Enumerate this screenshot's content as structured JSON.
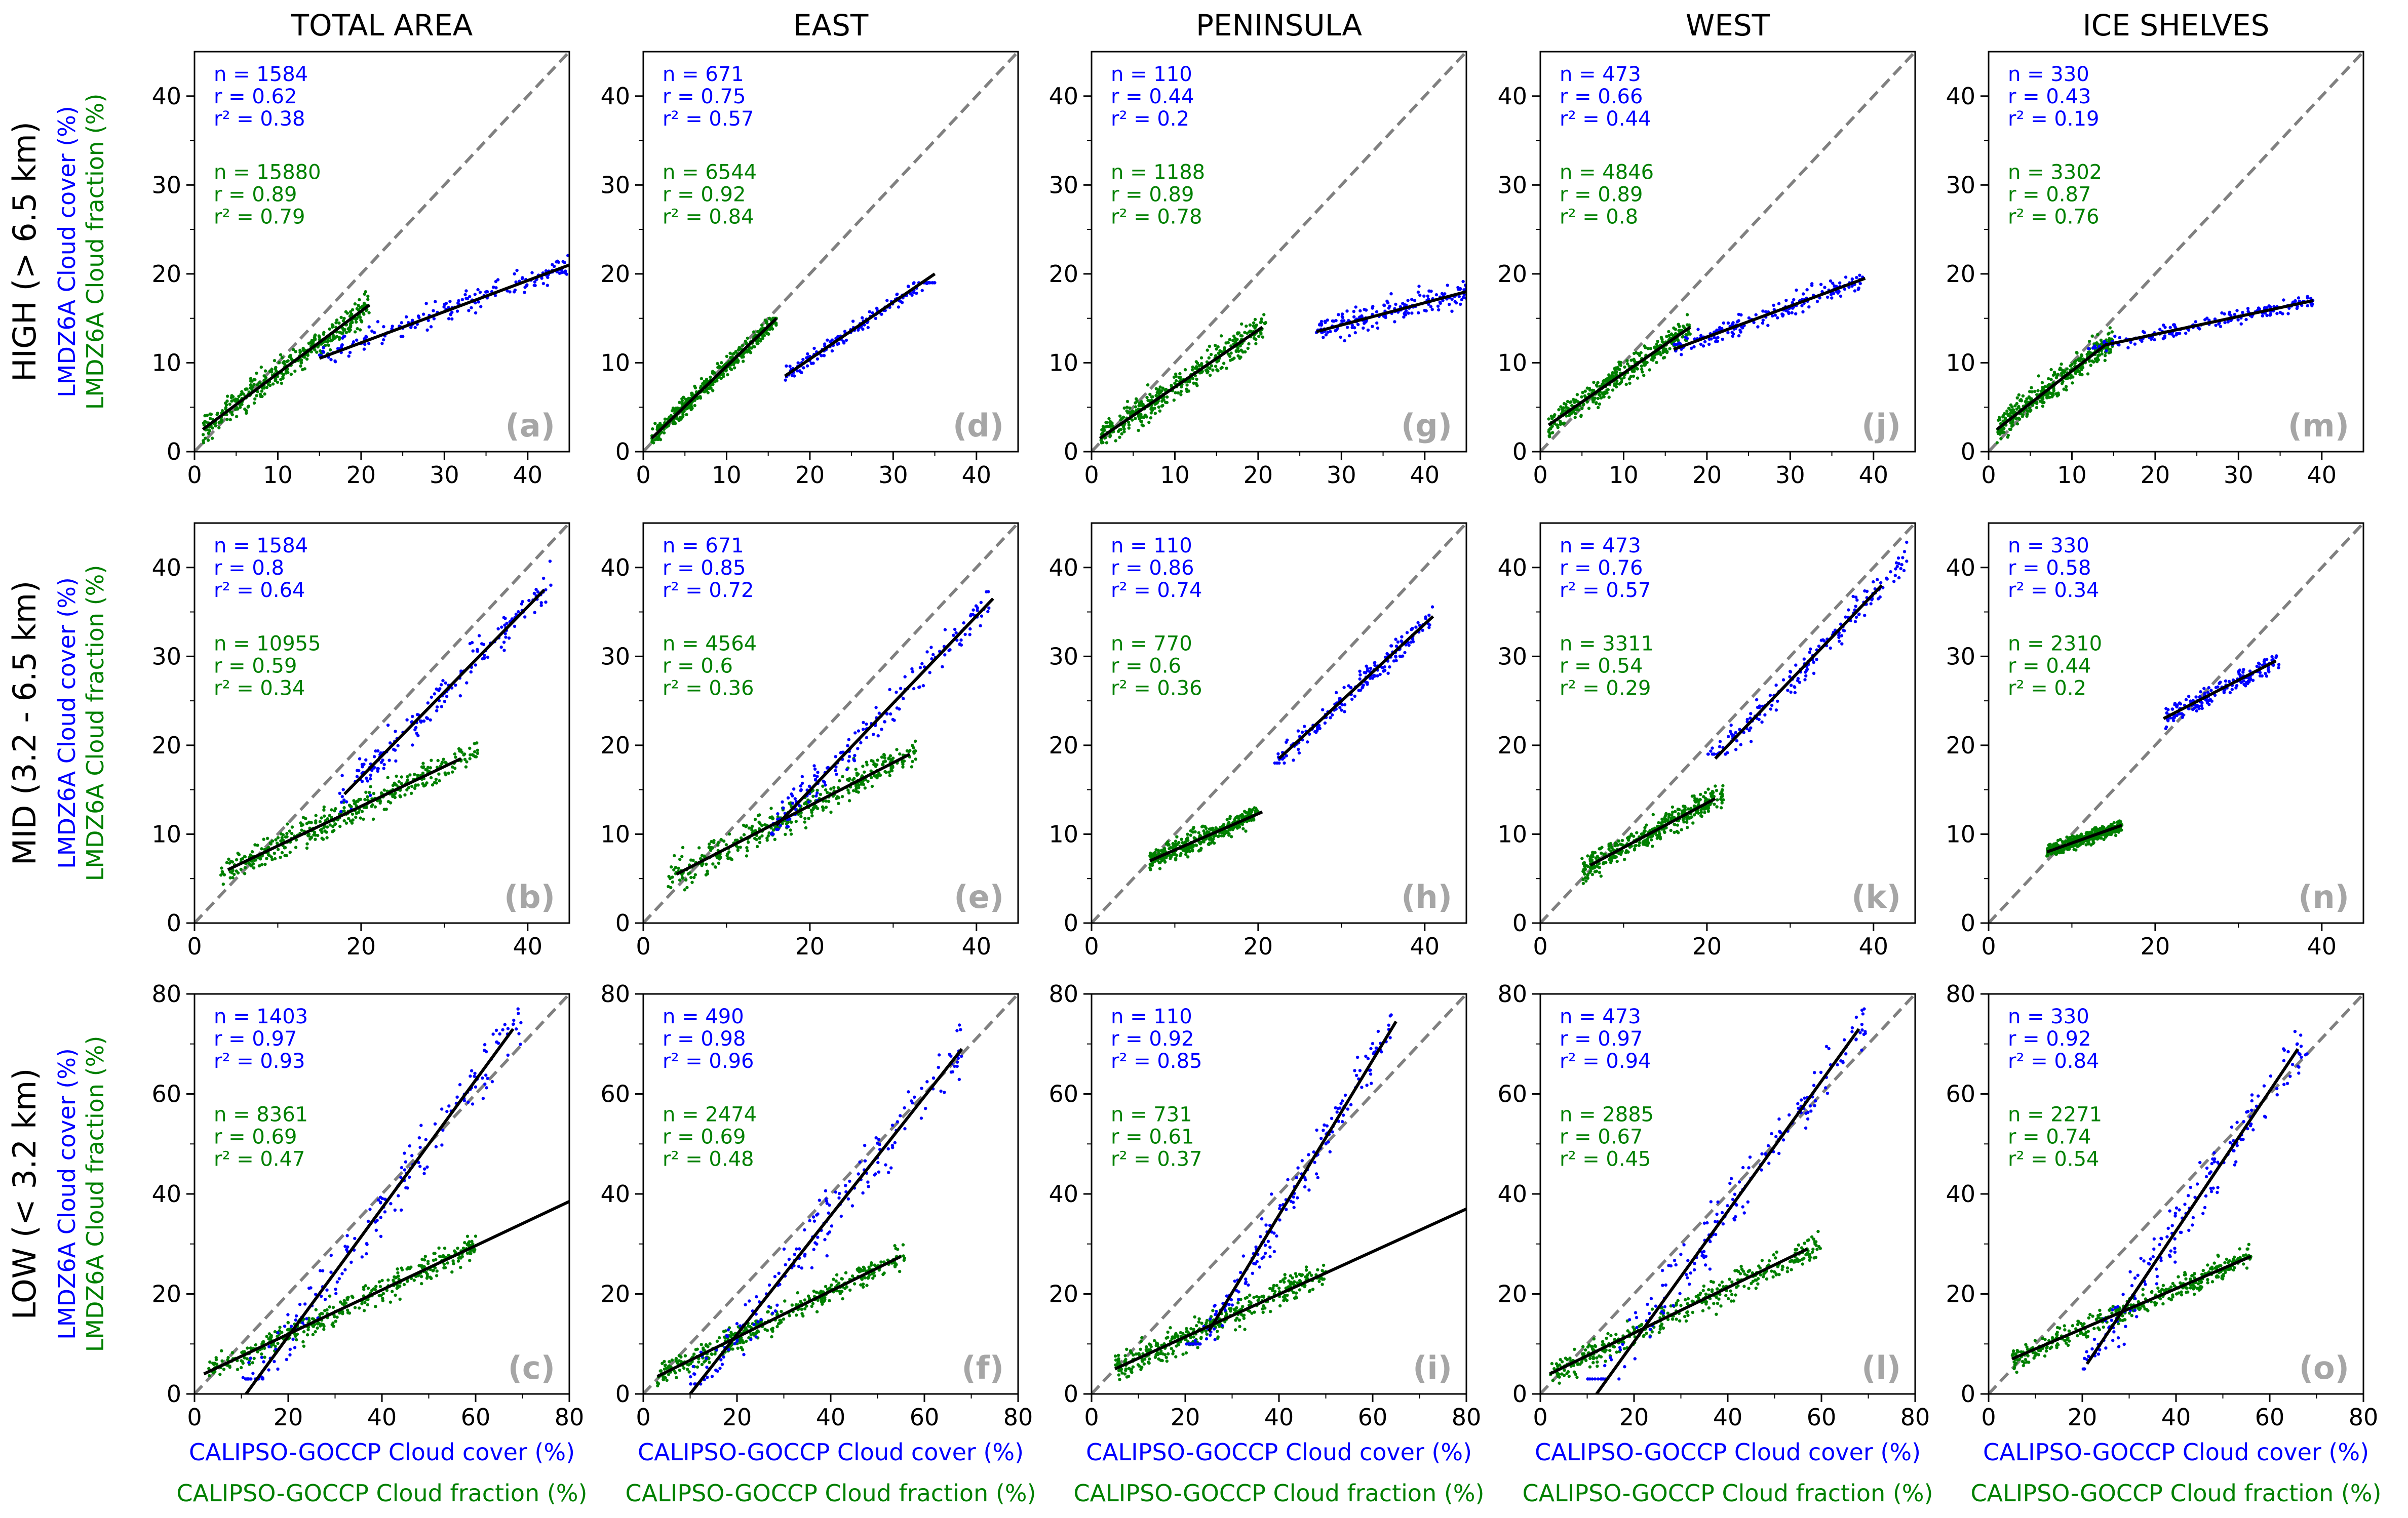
{
  "colors": {
    "calipso_cover": "#0000ff",
    "calipso_fraction": "#008000",
    "one_to_one": "#808080",
    "fit": "#000000",
    "panel_letter": "#a6a6a6"
  },
  "figure": {
    "column_titles": [
      "TOTAL AREA",
      "EAST",
      "PENINSULA",
      "WEST",
      "ICE SHELVES"
    ],
    "row_titles": [
      "HIGH (> 6.5 km)",
      "MID (3.2 - 6.5 km)",
      "LOW (< 3.2 km)"
    ],
    "y_label_blue": "LMDZ6A Cloud cover (%)",
    "y_label_green": "LMDZ6A Cloud fraction (%)",
    "x_label_blue": "CALIPSO-GOCCP Cloud cover (%)",
    "x_label_green": "CALIPSO-GOCCP Cloud fraction (%)"
  },
  "chart_data": [
    {
      "type": "scatter",
      "row": 0,
      "col": 0,
      "panel": "(a)",
      "xlim": [
        0,
        45
      ],
      "ylim": [
        0,
        45
      ],
      "xticks": [
        0,
        10,
        20,
        30,
        40
      ],
      "yticks": [
        0,
        10,
        20,
        30,
        40
      ],
      "blue": {
        "n": "n = 1584",
        "r": "r = 0.62",
        "r2": "r² = 0.38",
        "cx": [
          15,
          45
        ],
        "cy": [
          8,
          26
        ],
        "fit": [
          [
            15,
            10.5
          ],
          [
            45,
            21
          ]
        ]
      },
      "green": {
        "n": "n = 15880",
        "r": "r = 0.89",
        "r2": "r² = 0.79",
        "cx": [
          1,
          21
        ],
        "cy": [
          1,
          22
        ],
        "fit": [
          [
            1,
            2.5
          ],
          [
            21,
            16.5
          ]
        ]
      }
    },
    {
      "type": "scatter",
      "row": 0,
      "col": 1,
      "panel": "(d)",
      "xlim": [
        0,
        45
      ],
      "ylim": [
        0,
        45
      ],
      "xticks": [
        0,
        10,
        20,
        30,
        40
      ],
      "yticks": [
        0,
        10,
        20,
        30,
        40
      ],
      "blue": {
        "n": "n = 671",
        "r": "r = 0.75",
        "r2": "r² = 0.57",
        "cx": [
          17,
          35
        ],
        "cy": [
          7,
          19
        ],
        "fit": [
          [
            17,
            8.5
          ],
          [
            35,
            20
          ]
        ]
      },
      "green": {
        "n": "n = 6544",
        "r": "r = 0.92",
        "r2": "r² = 0.84",
        "cx": [
          1,
          16
        ],
        "cy": [
          1,
          15
        ],
        "fit": [
          [
            1,
            1.5
          ],
          [
            16,
            15
          ]
        ]
      }
    },
    {
      "type": "scatter",
      "row": 0,
      "col": 2,
      "panel": "(g)",
      "xlim": [
        0,
        45
      ],
      "ylim": [
        0,
        45
      ],
      "xticks": [
        0,
        10,
        20,
        30,
        40
      ],
      "yticks": [
        0,
        10,
        20,
        30,
        40
      ],
      "blue": {
        "n": "n = 110",
        "r": "r = 0.44",
        "r2": "r² = 0.2",
        "cx": [
          27,
          45
        ],
        "cy": [
          9,
          28
        ],
        "fit": [
          [
            27,
            13.5
          ],
          [
            45,
            18
          ]
        ]
      },
      "green": {
        "n": "n = 1188",
        "r": "r = 0.89",
        "r2": "r² = 0.78",
        "cx": [
          1,
          21
        ],
        "cy": [
          1,
          22
        ],
        "fit": [
          [
            1,
            1.5
          ],
          [
            20.5,
            14
          ]
        ]
      }
    },
    {
      "type": "scatter",
      "row": 0,
      "col": 3,
      "panel": "(j)",
      "xlim": [
        0,
        45
      ],
      "ylim": [
        0,
        45
      ],
      "xticks": [
        0,
        10,
        20,
        30,
        40
      ],
      "yticks": [
        0,
        10,
        20,
        30,
        40
      ],
      "blue": {
        "n": "n = 473",
        "r": "r = 0.66",
        "r2": "r² = 0.44",
        "cx": [
          16,
          39
        ],
        "cy": [
          8,
          23
        ],
        "fit": [
          [
            16,
            11.5
          ],
          [
            39,
            19.5
          ]
        ]
      },
      "green": {
        "n": "n = 4846",
        "r": "r = 0.89",
        "r2": "r² = 0.8",
        "cx": [
          1,
          18
        ],
        "cy": [
          1,
          20
        ],
        "fit": [
          [
            1,
            3
          ],
          [
            18,
            14
          ]
        ]
      }
    },
    {
      "type": "scatter",
      "row": 0,
      "col": 4,
      "panel": "(m)",
      "xlim": [
        0,
        45
      ],
      "ylim": [
        0,
        45
      ],
      "xticks": [
        0,
        10,
        20,
        30,
        40
      ],
      "yticks": [
        0,
        10,
        20,
        30,
        40
      ],
      "blue": {
        "n": "n = 330",
        "r": "r = 0.43",
        "r2": "r² = 0.19",
        "cx": [
          12,
          39
        ],
        "cy": [
          8,
          18
        ],
        "fit": [
          [
            14,
            12
          ],
          [
            39,
            17
          ]
        ]
      },
      "green": {
        "n": "n = 3302",
        "r": "r = 0.87",
        "r2": "r² = 0.76",
        "cx": [
          1,
          15
        ],
        "cy": [
          1,
          22
        ],
        "fit": [
          [
            1,
            2.5
          ],
          [
            14,
            12
          ]
        ]
      }
    },
    {
      "type": "scatter",
      "row": 1,
      "col": 0,
      "panel": "(b)",
      "xlim": [
        0,
        45
      ],
      "ylim": [
        0,
        45
      ],
      "xticks": [
        0,
        20,
        40
      ],
      "yticks": [
        0,
        10,
        20,
        30,
        40
      ],
      "blue": {
        "n": "n = 1584",
        "r": "r = 0.8",
        "r2": "r² = 0.64",
        "cx": [
          17,
          43
        ],
        "cy": [
          12,
          42
        ],
        "fit": [
          [
            18,
            14.5
          ],
          [
            42,
            37.5
          ]
        ]
      },
      "green": {
        "n": "n = 10955",
        "r": "r = 0.59",
        "r2": "r² = 0.34",
        "cx": [
          3,
          34
        ],
        "cy": [
          1,
          22
        ],
        "fit": [
          [
            4,
            6
          ],
          [
            32,
            18.5
          ]
        ]
      }
    },
    {
      "type": "scatter",
      "row": 1,
      "col": 1,
      "panel": "(e)",
      "xlim": [
        0,
        45
      ],
      "ylim": [
        0,
        45
      ],
      "xticks": [
        0,
        20,
        40
      ],
      "yticks": [
        0,
        10,
        20,
        30,
        40
      ],
      "blue": {
        "n": "n = 671",
        "r": "r = 0.85",
        "r2": "r² = 0.72",
        "cx": [
          15,
          42
        ],
        "cy": [
          10,
          38
        ],
        "fit": [
          [
            16,
            11
          ],
          [
            42,
            36.5
          ]
        ]
      },
      "green": {
        "n": "n = 4564",
        "r": "r = 0.6",
        "r2": "r² = 0.36",
        "cx": [
          3,
          33
        ],
        "cy": [
          1,
          25
        ],
        "fit": [
          [
            4,
            5.5
          ],
          [
            32,
            19
          ]
        ]
      }
    },
    {
      "type": "scatter",
      "row": 1,
      "col": 2,
      "panel": "(h)",
      "xlim": [
        0,
        45
      ],
      "ylim": [
        0,
        45
      ],
      "xticks": [
        0,
        20,
        40
      ],
      "yticks": [
        0,
        10,
        20,
        30,
        40
      ],
      "blue": {
        "n": "n = 110",
        "r": "r = 0.86",
        "r2": "r² = 0.74",
        "cx": [
          22,
          41
        ],
        "cy": [
          18,
          37
        ],
        "fit": [
          [
            22.5,
            18.5
          ],
          [
            41,
            34.5
          ]
        ]
      },
      "green": {
        "n": "n = 770",
        "r": "r = 0.6",
        "r2": "r² = 0.36",
        "cx": [
          7,
          20
        ],
        "cy": [
          5,
          20
        ],
        "fit": [
          [
            7,
            7
          ],
          [
            20.5,
            12.5
          ]
        ]
      }
    },
    {
      "type": "scatter",
      "row": 1,
      "col": 3,
      "panel": "(k)",
      "xlim": [
        0,
        45
      ],
      "ylim": [
        0,
        45
      ],
      "xticks": [
        0,
        20,
        40
      ],
      "yticks": [
        0,
        10,
        20,
        30,
        40
      ],
      "blue": {
        "n": "n = 473",
        "r": "r = 0.76",
        "r2": "r² = 0.57",
        "cx": [
          20,
          44
        ],
        "cy": [
          19,
          43
        ],
        "fit": [
          [
            21,
            18.5
          ],
          [
            41,
            38
          ]
        ]
      },
      "green": {
        "n": "n = 3311",
        "r": "r = 0.54",
        "r2": "r² = 0.29",
        "cx": [
          5,
          22
        ],
        "cy": [
          3,
          22
        ],
        "fit": [
          [
            6,
            6.5
          ],
          [
            21,
            14
          ]
        ]
      }
    },
    {
      "type": "scatter",
      "row": 1,
      "col": 4,
      "panel": "(n)",
      "xlim": [
        0,
        45
      ],
      "ylim": [
        0,
        45
      ],
      "xticks": [
        0,
        20,
        40
      ],
      "yticks": [
        0,
        10,
        20,
        30,
        40
      ],
      "blue": {
        "n": "n = 330",
        "r": "r = 0.58",
        "r2": "r² = 0.34",
        "cx": [
          21,
          35
        ],
        "cy": [
          17,
          31
        ],
        "fit": [
          [
            21,
            23
          ],
          [
            34.5,
            29.5
          ]
        ]
      },
      "green": {
        "n": "n = 2310",
        "r": "r = 0.44",
        "r2": "r² = 0.2",
        "cx": [
          7,
          16
        ],
        "cy": [
          5,
          15
        ],
        "fit": [
          [
            7,
            8
          ],
          [
            16,
            11
          ]
        ]
      }
    },
    {
      "type": "scatter",
      "row": 2,
      "col": 0,
      "panel": "(c)",
      "xlim": [
        0,
        80
      ],
      "ylim": [
        0,
        80
      ],
      "xticks": [
        0,
        20,
        40,
        60,
        80
      ],
      "yticks": [
        0,
        20,
        40,
        60,
        80
      ],
      "blue": {
        "n": "n = 1403",
        "r": "r = 0.97",
        "r2": "r² = 0.93",
        "cx": [
          10,
          70
        ],
        "cy": [
          3,
          77
        ],
        "fit": [
          [
            11,
            0
          ],
          [
            68,
            73
          ]
        ]
      },
      "green": {
        "n": "n = 8361",
        "r": "r = 0.69",
        "r2": "r² = 0.47",
        "cx": [
          3,
          60
        ],
        "cy": [
          1,
          37
        ],
        "fit": [
          [
            2,
            4
          ],
          [
            80,
            38.5
          ]
        ]
      }
    },
    {
      "type": "scatter",
      "row": 2,
      "col": 1,
      "panel": "(f)",
      "xlim": [
        0,
        80
      ],
      "ylim": [
        0,
        80
      ],
      "xticks": [
        0,
        20,
        40,
        60,
        80
      ],
      "yticks": [
        0,
        20,
        40,
        60,
        80
      ],
      "blue": {
        "n": "n = 490",
        "r": "r = 0.98",
        "r2": "r² = 0.96",
        "cx": [
          10,
          68
        ],
        "cy": [
          2,
          74
        ],
        "fit": [
          [
            10,
            0
          ],
          [
            68,
            69
          ]
        ]
      },
      "green": {
        "n": "n = 2474",
        "r": "r = 0.69",
        "r2": "r² = 0.48",
        "cx": [
          3,
          56
        ],
        "cy": [
          1,
          34
        ],
        "fit": [
          [
            3,
            3.5
          ],
          [
            55,
            27.5
          ]
        ]
      }
    },
    {
      "type": "scatter",
      "row": 2,
      "col": 2,
      "panel": "(i)",
      "xlim": [
        0,
        80
      ],
      "ylim": [
        0,
        80
      ],
      "xticks": [
        0,
        20,
        40,
        60,
        80
      ],
      "yticks": [
        0,
        20,
        40,
        60,
        80
      ],
      "blue": {
        "n": "n = 110",
        "r": "r = 0.92",
        "r2": "r² = 0.85",
        "cx": [
          20,
          64
        ],
        "cy": [
          10,
          76
        ],
        "fit": [
          [
            25,
            12.5
          ],
          [
            65,
            74.5
          ]
        ]
      },
      "green": {
        "n": "n = 731",
        "r": "r = 0.61",
        "r2": "r² = 0.37",
        "cx": [
          5,
          50
        ],
        "cy": [
          2,
          40
        ],
        "fit": [
          [
            5,
            5
          ],
          [
            80,
            37
          ]
        ]
      }
    },
    {
      "type": "scatter",
      "row": 2,
      "col": 3,
      "panel": "(l)",
      "xlim": [
        0,
        80
      ],
      "ylim": [
        0,
        80
      ],
      "xticks": [
        0,
        20,
        40,
        60,
        80
      ],
      "yticks": [
        0,
        20,
        40,
        60,
        80
      ],
      "blue": {
        "n": "n = 473",
        "r": "r = 0.97",
        "r2": "r² = 0.94",
        "cx": [
          10,
          70
        ],
        "cy": [
          3,
          77
        ],
        "fit": [
          [
            12,
            0
          ],
          [
            68,
            73
          ]
        ]
      },
      "green": {
        "n": "n = 2885",
        "r": "r = 0.67",
        "r2": "r² = 0.45",
        "cx": [
          2,
          60
        ],
        "cy": [
          1,
          38
        ],
        "fit": [
          [
            2,
            4
          ],
          [
            57,
            29
          ]
        ]
      }
    },
    {
      "type": "scatter",
      "row": 2,
      "col": 4,
      "panel": "(o)",
      "xlim": [
        0,
        80
      ],
      "ylim": [
        0,
        80
      ],
      "xticks": [
        0,
        20,
        40,
        60,
        80
      ],
      "yticks": [
        0,
        20,
        40,
        60,
        80
      ],
      "blue": {
        "n": "n = 330",
        "r": "r = 0.92",
        "r2": "r² = 0.84",
        "cx": [
          20,
          68
        ],
        "cy": [
          5,
          76
        ],
        "fit": [
          [
            21,
            6
          ],
          [
            66,
            69
          ]
        ]
      },
      "green": {
        "n": "n = 2271",
        "r": "r = 0.74",
        "r2": "r² = 0.54",
        "cx": [
          5,
          56
        ],
        "cy": [
          2,
          32
        ],
        "fit": [
          [
            5,
            7
          ],
          [
            56,
            27.5
          ]
        ]
      }
    }
  ]
}
